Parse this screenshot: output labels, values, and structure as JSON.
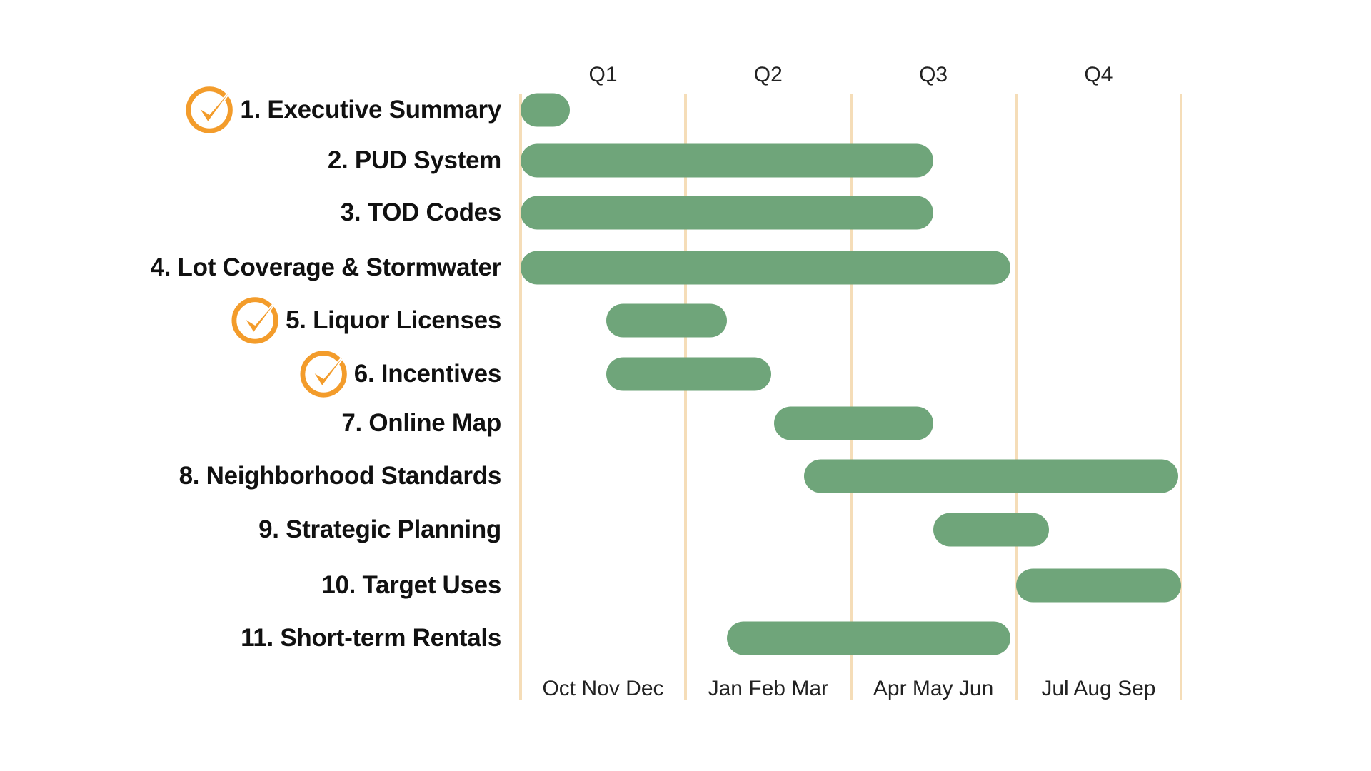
{
  "chart_data": {
    "type": "gantt",
    "title": "",
    "quarters": [
      "Q1",
      "Q2",
      "Q3",
      "Q4"
    ],
    "quarter_months": [
      "Oct Nov Dec",
      "Jan Feb Mar",
      "Apr May Jun",
      "Jul Aug Sep"
    ],
    "x_unit": "months from start of October",
    "xlim": [
      0,
      12
    ],
    "tasks": [
      {
        "label": "1. Executive Summary",
        "start": 0,
        "end": 0.9,
        "completed": true
      },
      {
        "label": "2. PUD System",
        "start": 0,
        "end": 7.5,
        "completed": false
      },
      {
        "label": "3. TOD Codes",
        "start": 0,
        "end": 7.5,
        "completed": false
      },
      {
        "label": "4. Lot Coverage & Stormwater",
        "start": 0,
        "end": 8.9,
        "completed": false
      },
      {
        "label": "5. Liquor Licenses",
        "start": 1.55,
        "end": 3.75,
        "completed": true
      },
      {
        "label": "6. Incentives",
        "start": 1.55,
        "end": 4.55,
        "completed": true
      },
      {
        "label": "7. Online Map",
        "start": 4.6,
        "end": 7.5,
        "completed": false
      },
      {
        "label": "8. Neighborhood Standards",
        "start": 5.15,
        "end": 11.95,
        "completed": false
      },
      {
        "label": "9. Strategic Planning",
        "start": 7.5,
        "end": 9.6,
        "completed": false
      },
      {
        "label": "10. Target Uses",
        "start": 9.0,
        "end": 12,
        "completed": false
      },
      {
        "label": "11. Short-term Rentals",
        "start": 3.75,
        "end": 8.9,
        "completed": false
      }
    ]
  },
  "colors": {
    "bar": "#6FA57A",
    "grid": "#F5DDB8",
    "check": "#F39C2B",
    "text": "#111111"
  },
  "icons": {
    "completed": "checkmark-circle-icon"
  }
}
